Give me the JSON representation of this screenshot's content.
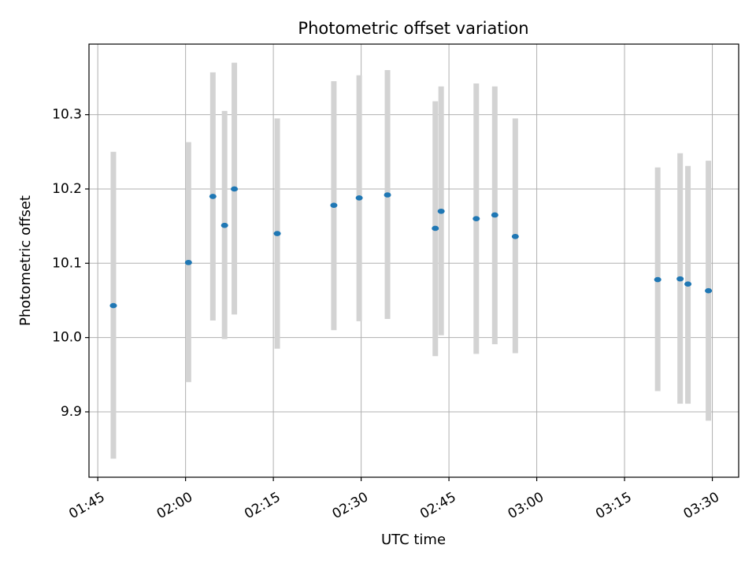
{
  "chart_data": {
    "type": "scatter",
    "title": "Photometric offset variation",
    "xlabel": "UTC time",
    "ylabel": "Photometric offset",
    "x_ticks": [
      "01:45",
      "02:00",
      "02:15",
      "02:30",
      "02:45",
      "03:00",
      "03:15",
      "03:30"
    ],
    "y_ticks": [
      "9.9",
      "10.0",
      "10.1",
      "10.2",
      "10.3"
    ],
    "xlim": [
      "01:43:30",
      "03:34:30"
    ],
    "ylim": [
      9.812,
      10.395
    ],
    "grid": true,
    "colors": {
      "point": "#1f77b4",
      "errorbar": "#d3d3d3"
    },
    "points": [
      {
        "x": "01:47:40",
        "y": 10.043,
        "yerr_low": 9.837,
        "yerr_high": 10.25
      },
      {
        "x": "02:00:30",
        "y": 10.101,
        "yerr_low": 9.94,
        "yerr_high": 10.263
      },
      {
        "x": "02:04:40",
        "y": 10.19,
        "yerr_low": 10.023,
        "yerr_high": 10.357
      },
      {
        "x": "02:06:40",
        "y": 10.151,
        "yerr_low": 9.998,
        "yerr_high": 10.305
      },
      {
        "x": "02:08:20",
        "y": 10.2,
        "yerr_low": 10.031,
        "yerr_high": 10.37
      },
      {
        "x": "02:15:40",
        "y": 10.14,
        "yerr_low": 9.985,
        "yerr_high": 10.295
      },
      {
        "x": "02:25:20",
        "y": 10.178,
        "yerr_low": 10.01,
        "yerr_high": 10.345
      },
      {
        "x": "02:29:40",
        "y": 10.188,
        "yerr_low": 10.022,
        "yerr_high": 10.353
      },
      {
        "x": "02:34:30",
        "y": 10.192,
        "yerr_low": 10.025,
        "yerr_high": 10.36
      },
      {
        "x": "02:42:40",
        "y": 10.147,
        "yerr_low": 9.975,
        "yerr_high": 10.318
      },
      {
        "x": "02:43:40",
        "y": 10.17,
        "yerr_low": 10.003,
        "yerr_high": 10.338
      },
      {
        "x": "02:49:40",
        "y": 10.16,
        "yerr_low": 9.978,
        "yerr_high": 10.342
      },
      {
        "x": "02:52:50",
        "y": 10.165,
        "yerr_low": 9.991,
        "yerr_high": 10.338
      },
      {
        "x": "02:56:20",
        "y": 10.136,
        "yerr_low": 9.979,
        "yerr_high": 10.295
      },
      {
        "x": "03:20:40",
        "y": 10.078,
        "yerr_low": 9.928,
        "yerr_high": 10.229
      },
      {
        "x": "03:24:30",
        "y": 10.079,
        "yerr_low": 9.911,
        "yerr_high": 10.248
      },
      {
        "x": "03:25:50",
        "y": 10.072,
        "yerr_low": 9.911,
        "yerr_high": 10.231
      },
      {
        "x": "03:29:20",
        "y": 10.063,
        "yerr_low": 9.888,
        "yerr_high": 10.238
      }
    ]
  }
}
